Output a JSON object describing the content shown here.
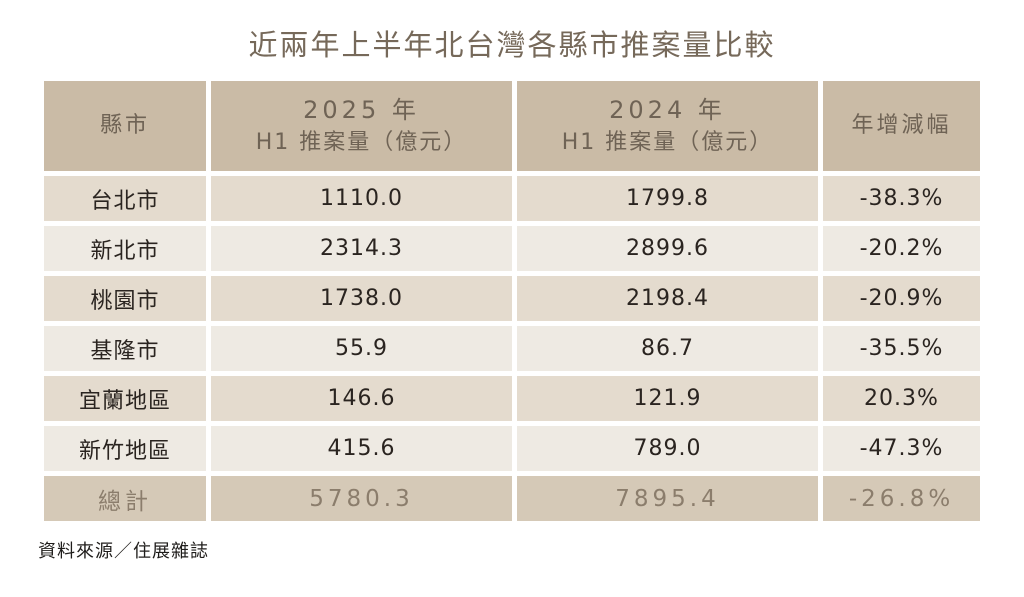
{
  "title": "近兩年上半年北台灣各縣市推案量比較",
  "source": "資料來源／住展雜誌",
  "colors": {
    "header_bg": "#cabba6",
    "row_odd_bg": "#e4dbce",
    "row_even_bg": "#eeeae3",
    "total_bg": "#d5c9b7",
    "header_text": "#6f6355",
    "total_text": "#8b7d6c",
    "body_text": "#2a2420",
    "title_text": "#76695a"
  },
  "table": {
    "headers": {
      "city": "縣市",
      "y2025_line1": "2025 年",
      "y2025_line2": "H1 推案量（億元）",
      "y2024_line1": "2024 年",
      "y2024_line2": "H1 推案量（億元）",
      "yoy": "年增減幅"
    },
    "rows": [
      {
        "city": "台北市",
        "v2025": "1110.0",
        "v2024": "1799.8",
        "yoy": "-38.3%"
      },
      {
        "city": "新北市",
        "v2025": "2314.3",
        "v2024": "2899.6",
        "yoy": "-20.2%"
      },
      {
        "city": "桃園市",
        "v2025": "1738.0",
        "v2024": "2198.4",
        "yoy": "-20.9%"
      },
      {
        "city": "基隆市",
        "v2025": "55.9",
        "v2024": "86.7",
        "yoy": "-35.5%"
      },
      {
        "city": "宜蘭地區",
        "v2025": "146.6",
        "v2024": "121.9",
        "yoy": "20.3%"
      },
      {
        "city": "新竹地區",
        "v2025": "415.6",
        "v2024": "789.0",
        "yoy": "-47.3%"
      }
    ],
    "total": {
      "label": "總計",
      "v2025": "5780.3",
      "v2024": "7895.4",
      "yoy": "-26.8%"
    }
  },
  "chart_data": {
    "type": "table",
    "title": "近兩年上半年北台灣各縣市推案量比較",
    "columns": [
      "縣市",
      "2025 年 H1 推案量（億元）",
      "2024 年 H1 推案量（億元）",
      "年增減幅"
    ],
    "rows": [
      [
        "台北市",
        1110.0,
        1799.8,
        "-38.3%"
      ],
      [
        "新北市",
        2314.3,
        2899.6,
        "-20.2%"
      ],
      [
        "桃園市",
        1738.0,
        2198.4,
        "-20.9%"
      ],
      [
        "基隆市",
        55.9,
        86.7,
        "-35.5%"
      ],
      [
        "宜蘭地區",
        146.6,
        121.9,
        "20.3%"
      ],
      [
        "新竹地區",
        415.6,
        789.0,
        "-47.3%"
      ],
      [
        "總計",
        5780.3,
        7895.4,
        "-26.8%"
      ]
    ],
    "source": "資料來源／住展雜誌"
  }
}
